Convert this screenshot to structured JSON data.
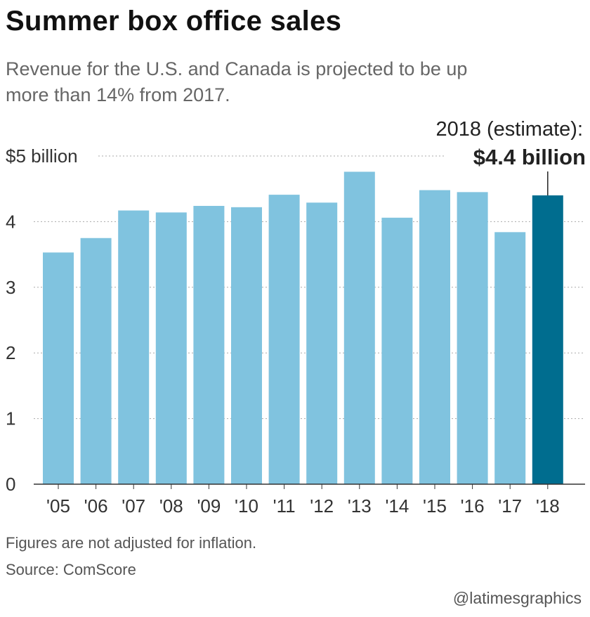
{
  "chart_data": {
    "type": "bar",
    "title": "Summer box office sales",
    "subtitle": "Revenue for the U.S. and Canada is projected to be up more than 14% from 2017.",
    "categories": [
      "'05",
      "'06",
      "'07",
      "'08",
      "'09",
      "'10",
      "'11",
      "'12",
      "'13",
      "'14",
      "'15",
      "'16",
      "'17",
      "'18"
    ],
    "values": [
      3.53,
      3.75,
      4.17,
      4.14,
      4.24,
      4.22,
      4.41,
      4.29,
      4.76,
      4.06,
      4.48,
      4.45,
      3.84,
      4.4
    ],
    "highlight_index": 13,
    "ylim": [
      0,
      5
    ],
    "yticks": [
      0,
      1,
      2,
      3,
      4,
      5
    ],
    "ytick_labels": [
      "0",
      "1",
      "2",
      "3",
      "4",
      "$5 billion"
    ],
    "grid": "dotted horizontal",
    "annotation": {
      "line1": "2018 (estimate):",
      "line2": "$4.4 billion"
    },
    "colors": {
      "bar": "#80c3df",
      "highlight": "#006d8f",
      "grid": "#aaaaaa",
      "axis": "#333333"
    }
  },
  "footer": {
    "note": "Figures are not adjusted for inflation.",
    "source": "Source: ComScore",
    "credit": "@latimesgraphics"
  }
}
